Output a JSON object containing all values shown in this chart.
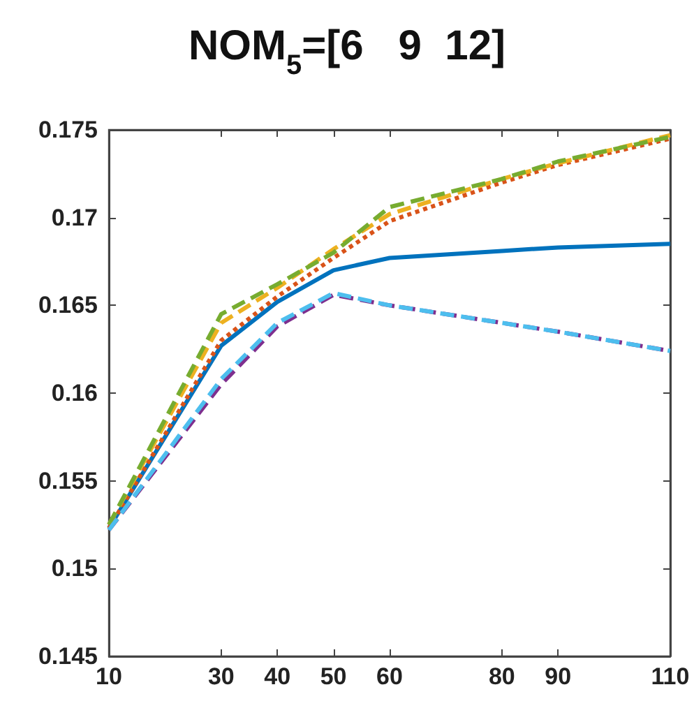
{
  "chart_data": {
    "type": "line",
    "title": "NOM$_{5}$=[6   9  12]",
    "x": [
      10,
      30,
      40,
      50,
      60,
      80,
      90,
      110
    ],
    "xlim": [
      10,
      110
    ],
    "xticks": [
      10,
      30,
      40,
      50,
      60,
      80,
      90,
      110
    ],
    "ylim": [
      0.145,
      0.175
    ],
    "yticks": [
      0.145,
      0.15,
      0.155,
      0.16,
      0.165,
      0.17,
      0.175
    ],
    "grid": false,
    "marker": "none",
    "series": [
      {
        "color": "#0072bd",
        "line_style": "solid",
        "values": [
          0.1523,
          0.1627,
          0.1652,
          0.167,
          0.1677,
          0.1681,
          0.1683,
          0.1685
        ]
      },
      {
        "color": "#d95319",
        "line_style": "dotted",
        "values": [
          0.1523,
          0.163,
          0.1655,
          0.1677,
          0.1698,
          0.172,
          0.173,
          0.1745
        ]
      },
      {
        "color": "#edb120",
        "line_style": "dashed",
        "values": [
          0.1525,
          0.164,
          0.166,
          0.1682,
          0.1702,
          0.1722,
          0.1731,
          0.1747
        ]
      },
      {
        "color": "#77ac30",
        "line_style": "dashed",
        "values": [
          0.1525,
          0.1645,
          0.1662,
          0.168,
          0.1706,
          0.1722,
          0.1732,
          0.1746
        ]
      },
      {
        "color": "#7e2f8e",
        "line_style": "dashed",
        "values": [
          0.1522,
          0.1605,
          0.1638,
          0.1656,
          0.165,
          0.164,
          0.1635,
          0.1624
        ]
      },
      {
        "color": "#4dbeee",
        "line_style": "dashed",
        "values": [
          0.1522,
          0.1608,
          0.164,
          0.1657,
          0.165,
          0.164,
          0.1635,
          0.1624
        ]
      }
    ]
  }
}
